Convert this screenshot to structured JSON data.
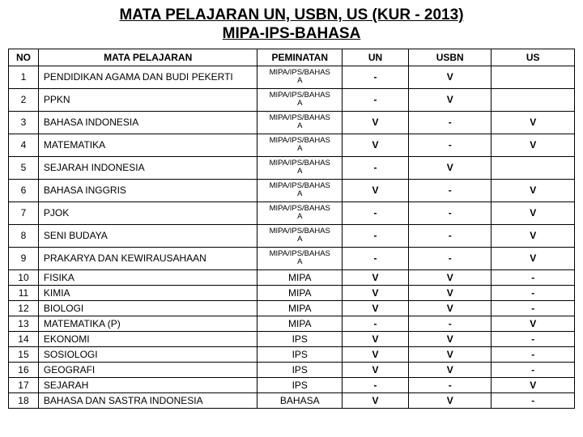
{
  "title_line1": "MATA PELAJARAN UN, USBN, US (KUR - 2013)",
  "title_line2": "MIPA-IPS-BAHASA",
  "headers": {
    "no": "NO",
    "mp": "MATA PELAJARAN",
    "pem": "PEMINATAN",
    "un": "UN",
    "usbn": "USBN",
    "us": "US"
  },
  "rows": [
    {
      "no": "1",
      "mp": "PENDIDIKAN AGAMA DAN BUDI PEKERTI",
      "pem": "MIPA/IPS/BAHASA",
      "un": "-",
      "usbn": "V",
      "us": ""
    },
    {
      "no": "2",
      "mp": "PPKN",
      "pem": "MIPA/IPS/BAHASA",
      "un": "-",
      "usbn": "V",
      "us": ""
    },
    {
      "no": "3",
      "mp": "BAHASA INDONESIA",
      "pem": "MIPA/IPS/BAHASA",
      "un": "V",
      "usbn": "-",
      "us": "V"
    },
    {
      "no": "4",
      "mp": "MATEMATIKA",
      "pem": "MIPA/IPS/BAHASA",
      "un": "V",
      "usbn": "-",
      "us": "V"
    },
    {
      "no": "5",
      "mp": "SEJARAH INDONESIA",
      "pem": "MIPA/IPS/BAHASA",
      "un": "-",
      "usbn": "V",
      "us": ""
    },
    {
      "no": "6",
      "mp": "BAHASA INGGRIS",
      "pem": "MIPA/IPS/BAHASA",
      "un": "V",
      "usbn": "-",
      "us": "V"
    },
    {
      "no": "7",
      "mp": "PJOK",
      "pem": "MIPA/IPS/BAHASA",
      "un": "-",
      "usbn": "-",
      "us": "V"
    },
    {
      "no": "8",
      "mp": "SENI BUDAYA",
      "pem": "MIPA/IPS/BAHASA",
      "un": "-",
      "usbn": "-",
      "us": "V"
    },
    {
      "no": "9",
      "mp": "PRAKARYA DAN KEWIRAUSAHAAN",
      "pem": "MIPA/IPS/BAHASA",
      "un": "-",
      "usbn": "-",
      "us": "V"
    },
    {
      "no": "10",
      "mp": "FISIKA",
      "pem": "MIPA",
      "un": "V",
      "usbn": "V",
      "us": "-",
      "short": true
    },
    {
      "no": "11",
      "mp": "KIMIA",
      "pem": "MIPA",
      "un": "V",
      "usbn": "V",
      "us": "-",
      "short": true
    },
    {
      "no": "12",
      "mp": "BIOLOGI",
      "pem": "MIPA",
      "un": "V",
      "usbn": "V",
      "us": "-",
      "short": true
    },
    {
      "no": "13",
      "mp": "MATEMATIKA (P)",
      "pem": "MIPA",
      "un": "-",
      "usbn": "-",
      "us": "V",
      "short": true
    },
    {
      "no": "14",
      "mp": "EKONOMI",
      "pem": "IPS",
      "un": "V",
      "usbn": "V",
      "us": "-",
      "short": true
    },
    {
      "no": "15",
      "mp": "SOSIOLOGI",
      "pem": "IPS",
      "un": "V",
      "usbn": "V",
      "us": "-",
      "short": true
    },
    {
      "no": "16",
      "mp": "GEOGRAFI",
      "pem": "IPS",
      "un": "V",
      "usbn": "V",
      "us": "-",
      "short": true
    },
    {
      "no": "17",
      "mp": "SEJARAH",
      "pem": "IPS",
      "un": "-",
      "usbn": "-",
      "us": "V",
      "short": true
    },
    {
      "no": "18",
      "mp": "BAHASA DAN SASTRA INDONESIA",
      "pem": "BAHASA",
      "un": "V",
      "usbn": "V",
      "us": "-",
      "short": true,
      "cut": true
    }
  ]
}
